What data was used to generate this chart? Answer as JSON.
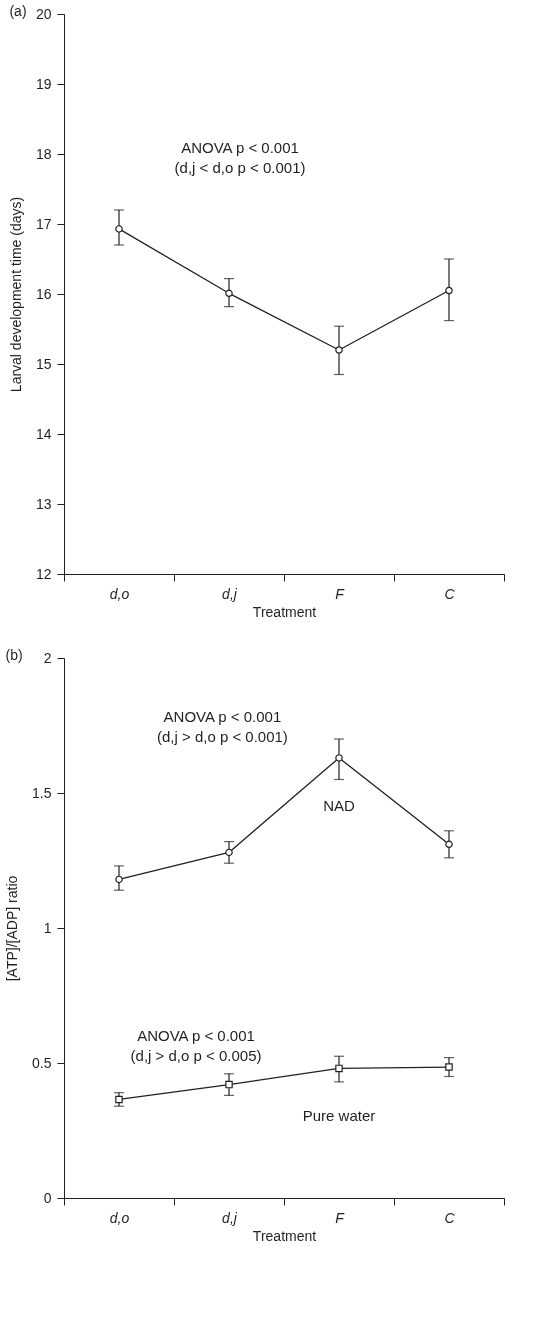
{
  "chart_data": [
    {
      "type": "line",
      "title": "(a)",
      "xlabel": "Treatment",
      "ylabel": "Larval development time (days)",
      "categories": [
        "d,o",
        "d,j",
        "F",
        "C"
      ],
      "values": [
        16.93,
        16.01,
        15.2,
        16.05
      ],
      "errors": [
        [
          16.7,
          17.2
        ],
        [
          15.82,
          16.22
        ],
        [
          14.85,
          15.54
        ],
        [
          15.62,
          16.5
        ]
      ],
      "color": "#231f20",
      "marker": "circle",
      "ylim": [
        12,
        20
      ],
      "yticks": [
        12,
        13,
        14,
        15,
        16,
        17,
        18,
        19,
        20
      ],
      "annotations": [
        "ANOVA p < 0.001\n(d,j < d,o  p < 0.001)"
      ]
    },
    {
      "type": "line",
      "title": "(b)",
      "xlabel": "Treatment",
      "ylabel": "[ATP]/[ADP] ratio",
      "categories": [
        "d,o",
        "d,j",
        "F",
        "C"
      ],
      "series": [
        {
          "name": "NAD",
          "color": "#231f20",
          "marker": "circle",
          "values": [
            1.18,
            1.28,
            1.63,
            1.31
          ],
          "errors": [
            [
              1.14,
              1.23
            ],
            [
              1.24,
              1.32
            ],
            [
              1.55,
              1.7
            ],
            [
              1.26,
              1.36
            ]
          ]
        },
        {
          "name": "Pure water",
          "color": "#231f20",
          "marker": "square",
          "values": [
            0.365,
            0.42,
            0.48,
            0.485
          ],
          "errors": [
            [
              0.34,
              0.39
            ],
            [
              0.38,
              0.46
            ],
            [
              0.43,
              0.525
            ],
            [
              0.45,
              0.52
            ]
          ]
        }
      ],
      "ylim": [
        0,
        2
      ],
      "yticks": [
        0,
        0.5,
        1,
        1.5,
        2
      ],
      "annotations": [
        "ANOVA p < 0.001\n(d,j > d,o  p < 0.001)",
        "ANOVA p < 0.001\n(d,j > d,o  p < 0.005)"
      ]
    }
  ]
}
